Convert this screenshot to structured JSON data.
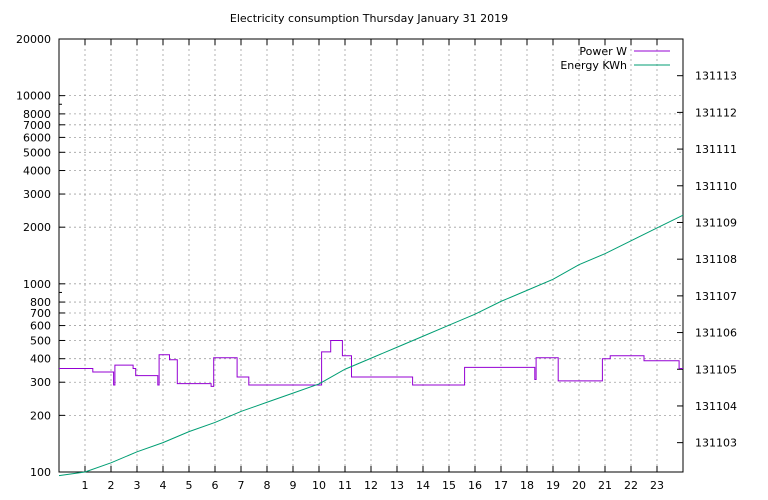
{
  "chart_data": {
    "type": "line",
    "title": "Electricity consumption Thursday January 31 2019",
    "xlabel": "",
    "ylabel": "",
    "x_range": [
      0,
      24
    ],
    "x_ticks": [
      1,
      2,
      3,
      4,
      5,
      6,
      7,
      8,
      9,
      10,
      11,
      12,
      13,
      14,
      15,
      16,
      17,
      18,
      19,
      20,
      21,
      22,
      23
    ],
    "y_left": {
      "scale": "log",
      "range": [
        100,
        20000
      ],
      "ticks": [
        100,
        200,
        300,
        400,
        500,
        600,
        700,
        800,
        1000,
        2000,
        3000,
        4000,
        5000,
        6000,
        7000,
        8000,
        10000,
        20000
      ]
    },
    "y_right": {
      "scale": "linear",
      "range": [
        131102.2,
        131114.0
      ],
      "ticks": [
        131103,
        131104,
        131105,
        131106,
        131107,
        131108,
        131109,
        131110,
        131111,
        131112,
        131113
      ]
    },
    "grid": true,
    "legend_position": "top-right",
    "series": [
      {
        "name": "Power W",
        "axis": "left",
        "color": "#9400d3",
        "step": true,
        "points": [
          [
            0.0,
            355
          ],
          [
            1.3,
            355
          ],
          [
            1.3,
            340
          ],
          [
            2.1,
            340
          ],
          [
            2.1,
            290
          ],
          [
            2.15,
            290
          ],
          [
            2.15,
            370
          ],
          [
            2.85,
            370
          ],
          [
            2.85,
            355
          ],
          [
            2.95,
            355
          ],
          [
            2.95,
            325
          ],
          [
            3.8,
            325
          ],
          [
            3.8,
            290
          ],
          [
            3.85,
            290
          ],
          [
            3.85,
            420
          ],
          [
            4.25,
            420
          ],
          [
            4.25,
            395
          ],
          [
            4.55,
            395
          ],
          [
            4.55,
            295
          ],
          [
            5.85,
            295
          ],
          [
            5.85,
            285
          ],
          [
            5.95,
            285
          ],
          [
            5.95,
            405
          ],
          [
            6.85,
            405
          ],
          [
            6.85,
            320
          ],
          [
            7.3,
            320
          ],
          [
            7.3,
            290
          ],
          [
            10.1,
            290
          ],
          [
            10.1,
            435
          ],
          [
            10.45,
            435
          ],
          [
            10.45,
            500
          ],
          [
            10.9,
            500
          ],
          [
            10.9,
            415
          ],
          [
            11.25,
            415
          ],
          [
            11.25,
            320
          ],
          [
            13.6,
            320
          ],
          [
            13.6,
            290
          ],
          [
            15.6,
            290
          ],
          [
            15.6,
            360
          ],
          [
            18.3,
            360
          ],
          [
            18.3,
            310
          ],
          [
            18.35,
            310
          ],
          [
            18.35,
            405
          ],
          [
            19.2,
            405
          ],
          [
            19.2,
            305
          ],
          [
            20.9,
            305
          ],
          [
            20.9,
            400
          ],
          [
            21.2,
            400
          ],
          [
            21.2,
            415
          ],
          [
            22.5,
            415
          ],
          [
            22.5,
            390
          ],
          [
            23.85,
            390
          ],
          [
            23.85,
            355
          ],
          [
            24.0,
            355
          ]
        ]
      },
      {
        "name": "Energy KWh",
        "axis": "right",
        "color": "#009e73",
        "step": false,
        "points": [
          [
            0.0,
            131102.1
          ],
          [
            1.0,
            131102.2
          ],
          [
            2.0,
            131102.45
          ],
          [
            3.0,
            131102.75
          ],
          [
            4.0,
            131103.0
          ],
          [
            5.0,
            131103.3
          ],
          [
            6.0,
            131103.55
          ],
          [
            7.0,
            131103.85
          ],
          [
            8.0,
            131104.1
          ],
          [
            9.0,
            131104.35
          ],
          [
            10.0,
            131104.6
          ],
          [
            11.0,
            131105.0
          ],
          [
            12.0,
            131105.3
          ],
          [
            13.0,
            131105.6
          ],
          [
            14.0,
            131105.9
          ],
          [
            15.0,
            131106.2
          ],
          [
            16.0,
            131106.5
          ],
          [
            17.0,
            131106.85
          ],
          [
            18.0,
            131107.15
          ],
          [
            19.0,
            131107.45
          ],
          [
            20.0,
            131107.85
          ],
          [
            21.0,
            131108.15
          ],
          [
            22.0,
            131108.5
          ],
          [
            23.0,
            131108.85
          ],
          [
            24.0,
            131109.2
          ]
        ]
      }
    ]
  }
}
